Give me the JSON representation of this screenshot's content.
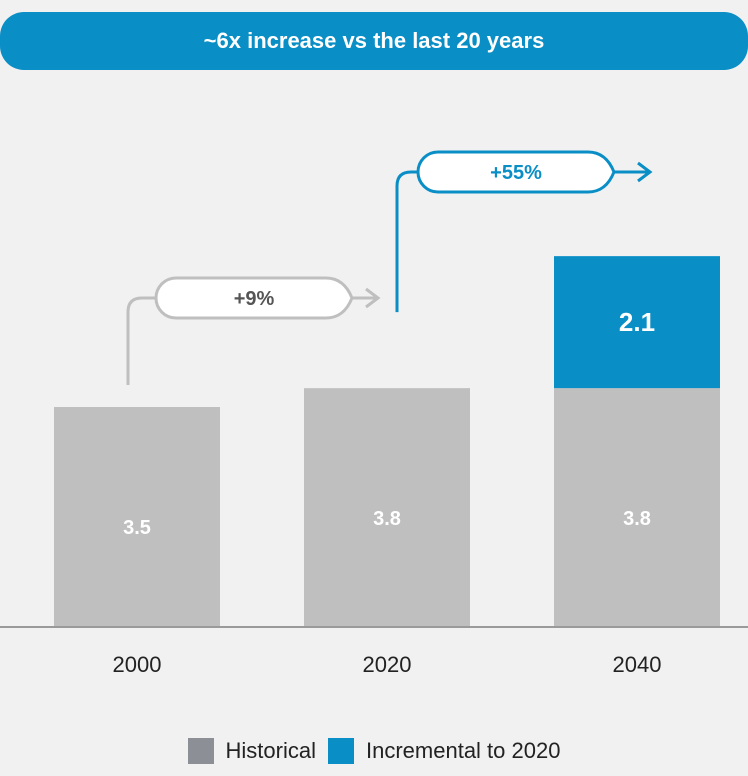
{
  "banner": {
    "text": "~6x increase vs the last 20 years"
  },
  "chart_data": {
    "type": "bar",
    "stacked": true,
    "categories": [
      "2000",
      "2020",
      "2040"
    ],
    "series": [
      {
        "name": "Historical",
        "values": [
          3.5,
          3.8,
          3.8
        ],
        "labels": [
          "3.5",
          "3.8",
          "3.8"
        ],
        "color": "#bfbfbf"
      },
      {
        "name": "Incremental to 2020",
        "values": [
          0,
          0,
          2.1
        ],
        "labels": [
          "",
          "",
          "2.1"
        ],
        "color": "#0a8ec6"
      }
    ],
    "annotations": [
      {
        "text": "+9%",
        "from": "2000",
        "to": "2020",
        "color": "#bfbfbf"
      },
      {
        "text": "+55%",
        "from": "2020",
        "to": "2040",
        "color": "#0a8ec6"
      }
    ],
    "ylim": [
      0,
      6.3
    ],
    "grid": false,
    "legend_position": "bottom"
  },
  "legend": [
    {
      "label": "Historical",
      "color": "#8c9096"
    },
    {
      "label": "Incremental to 2020",
      "color": "#0a8ec6"
    }
  ]
}
